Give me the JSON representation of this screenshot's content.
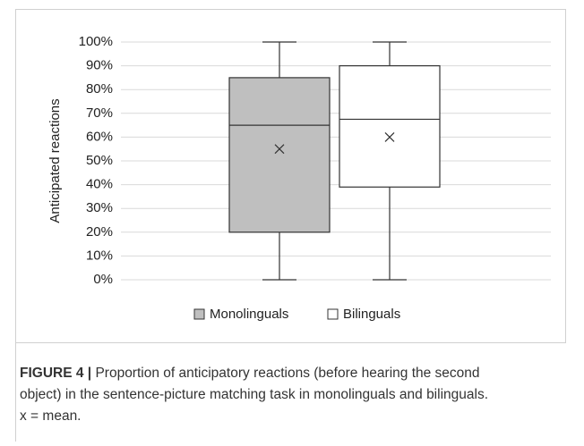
{
  "chart_data": {
    "type": "box",
    "ylabel": "Anticipated reactions",
    "ylim": [
      0,
      100
    ],
    "yticks": [
      {
        "value": 0,
        "label": "0%"
      },
      {
        "value": 10,
        "label": "10%"
      },
      {
        "value": 20,
        "label": "20%"
      },
      {
        "value": 30,
        "label": "30%"
      },
      {
        "value": 40,
        "label": "40%"
      },
      {
        "value": 50,
        "label": "50%"
      },
      {
        "value": 60,
        "label": "60%"
      },
      {
        "value": 70,
        "label": "70%"
      },
      {
        "value": 80,
        "label": "80%"
      },
      {
        "value": 90,
        "label": "90%"
      },
      {
        "value": 100,
        "label": "100%"
      }
    ],
    "grid": true,
    "legend": "bottom",
    "series": [
      {
        "name": "Monolinguals",
        "color": "#bfbfbf",
        "min": 0,
        "q1": 20,
        "median": 65,
        "q3": 85,
        "max": 100,
        "mean": 55
      },
      {
        "name": "Bilinguals",
        "color": "#ffffff",
        "min": 0,
        "q1": 39,
        "median": 67.5,
        "q3": 90,
        "max": 100,
        "mean": 60
      }
    ]
  },
  "caption": {
    "label": "FIGURE 4 |",
    "lines": [
      " Proportion of anticipatory reactions (before hearing the second",
      "object) in the sentence-picture matching task in monolinguals and bilinguals.",
      "x = mean."
    ]
  }
}
